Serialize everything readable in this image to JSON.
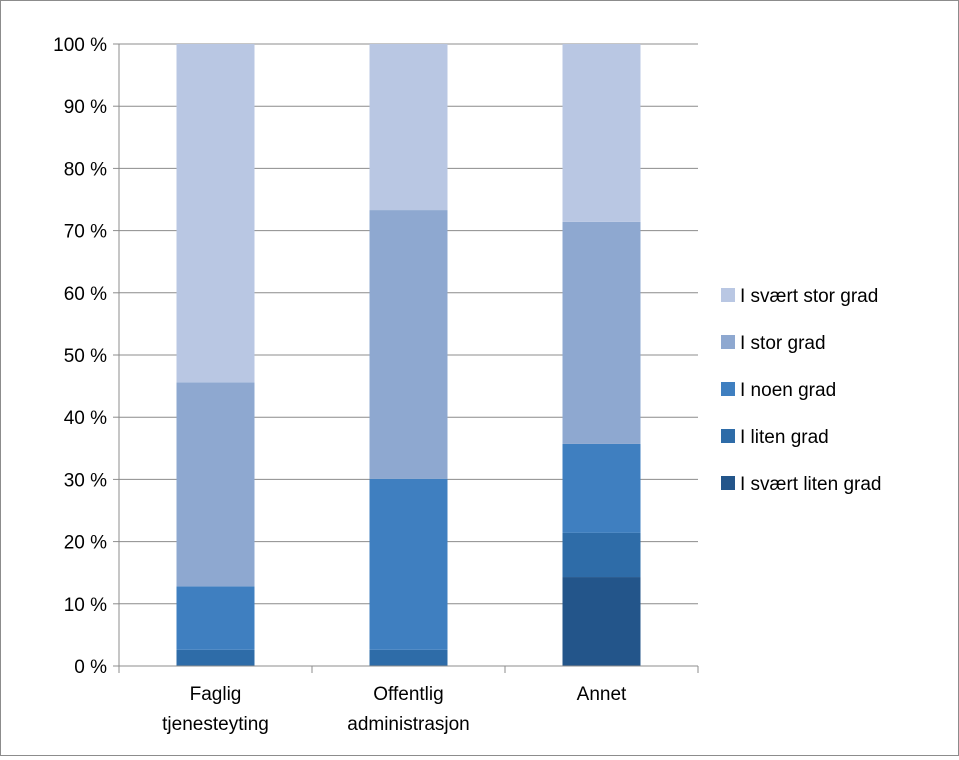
{
  "chart_data": {
    "type": "bar",
    "stacked": true,
    "normalized": true,
    "title": "",
    "xlabel": "",
    "ylabel": "",
    "ylim": [
      0,
      100
    ],
    "yticks": [
      "0 %",
      "10 %",
      "20 %",
      "30 %",
      "40 %",
      "50 %",
      "60 %",
      "70 %",
      "80 %",
      "90 %",
      "100 %"
    ],
    "categories": [
      [
        "Faglig",
        "tjenesteyting"
      ],
      [
        "Offentlig",
        "administrasjon"
      ],
      [
        "Annet"
      ]
    ],
    "grid": true,
    "legend_position": "right",
    "series": [
      {
        "name": "I svært liten grad",
        "color": "#23558a",
        "values": [
          0,
          0,
          14.3
        ]
      },
      {
        "name": "I liten grad",
        "color": "#2e6ca8",
        "values": [
          2.6,
          2.6,
          7.1
        ]
      },
      {
        "name": "I noen grad",
        "color": "#3f7fc0",
        "values": [
          10.2,
          27.5,
          14.3
        ]
      },
      {
        "name": "I stor grad",
        "color": "#8ea8d0",
        "values": [
          32.8,
          43.2,
          35.7
        ]
      },
      {
        "name": "I svært stor grad",
        "color": "#b9c7e3",
        "values": [
          54.4,
          26.7,
          28.6
        ]
      }
    ]
  }
}
